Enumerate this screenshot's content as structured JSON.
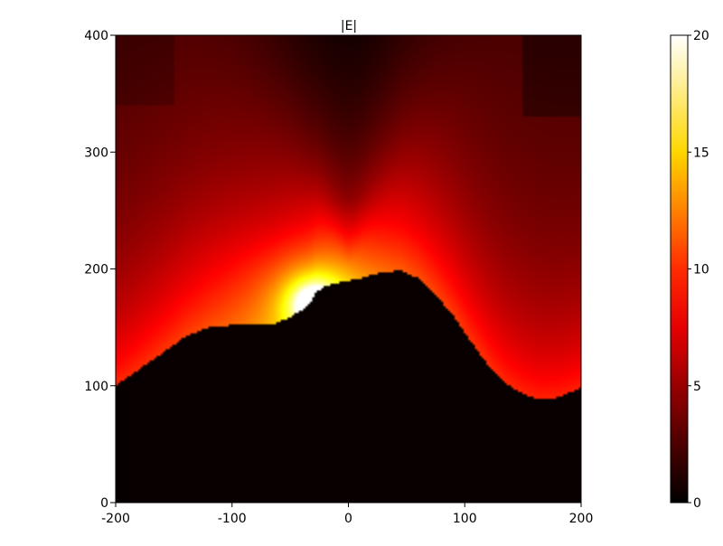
{
  "chart_data": {
    "type": "heatmap",
    "title": "|E|",
    "xlabel": "",
    "ylabel": "",
    "xlim": [
      -200,
      200
    ],
    "ylim": [
      0,
      400
    ],
    "x_ticks": [
      {
        "value": -200,
        "label": "-200"
      },
      {
        "value": -100,
        "label": "-100"
      },
      {
        "value": 0,
        "label": "0"
      },
      {
        "value": 100,
        "label": "100"
      },
      {
        "value": 200,
        "label": "200"
      }
    ],
    "y_ticks": [
      {
        "value": 0,
        "label": "0"
      },
      {
        "value": 100,
        "label": "100"
      },
      {
        "value": 200,
        "label": "200"
      },
      {
        "value": 300,
        "label": "300"
      },
      {
        "value": 400,
        "label": "400"
      }
    ],
    "colorbar": {
      "colormap": "hot",
      "range": [
        0,
        20
      ],
      "ticks": [
        {
          "value": 0,
          "label": "0"
        },
        {
          "value": 5,
          "label": "5"
        },
        {
          "value": 10,
          "label": "10"
        },
        {
          "value": 15,
          "label": "15"
        },
        {
          "value": 20,
          "label": "20"
        }
      ]
    },
    "surface_profile": {
      "x": [
        -200,
        -180,
        -160,
        -140,
        -120,
        -100,
        -80,
        -65,
        -52,
        -45,
        -38,
        -32,
        -28,
        -20,
        -10,
        0,
        10,
        20,
        30,
        45,
        60,
        75,
        90,
        105,
        120,
        135,
        150,
        165,
        180,
        190,
        200
      ],
      "y": [
        100,
        114,
        128,
        142,
        150,
        152,
        152,
        152,
        158,
        162,
        166,
        172,
        180,
        185,
        188,
        190,
        192,
        195,
        197,
        199,
        192,
        178,
        160,
        138,
        118,
        102,
        93,
        88,
        90,
        94,
        98
      ]
    },
    "hotspot": {
      "x": -30,
      "y": 170,
      "value": 20
    },
    "field_range": [
      0,
      20
    ]
  }
}
